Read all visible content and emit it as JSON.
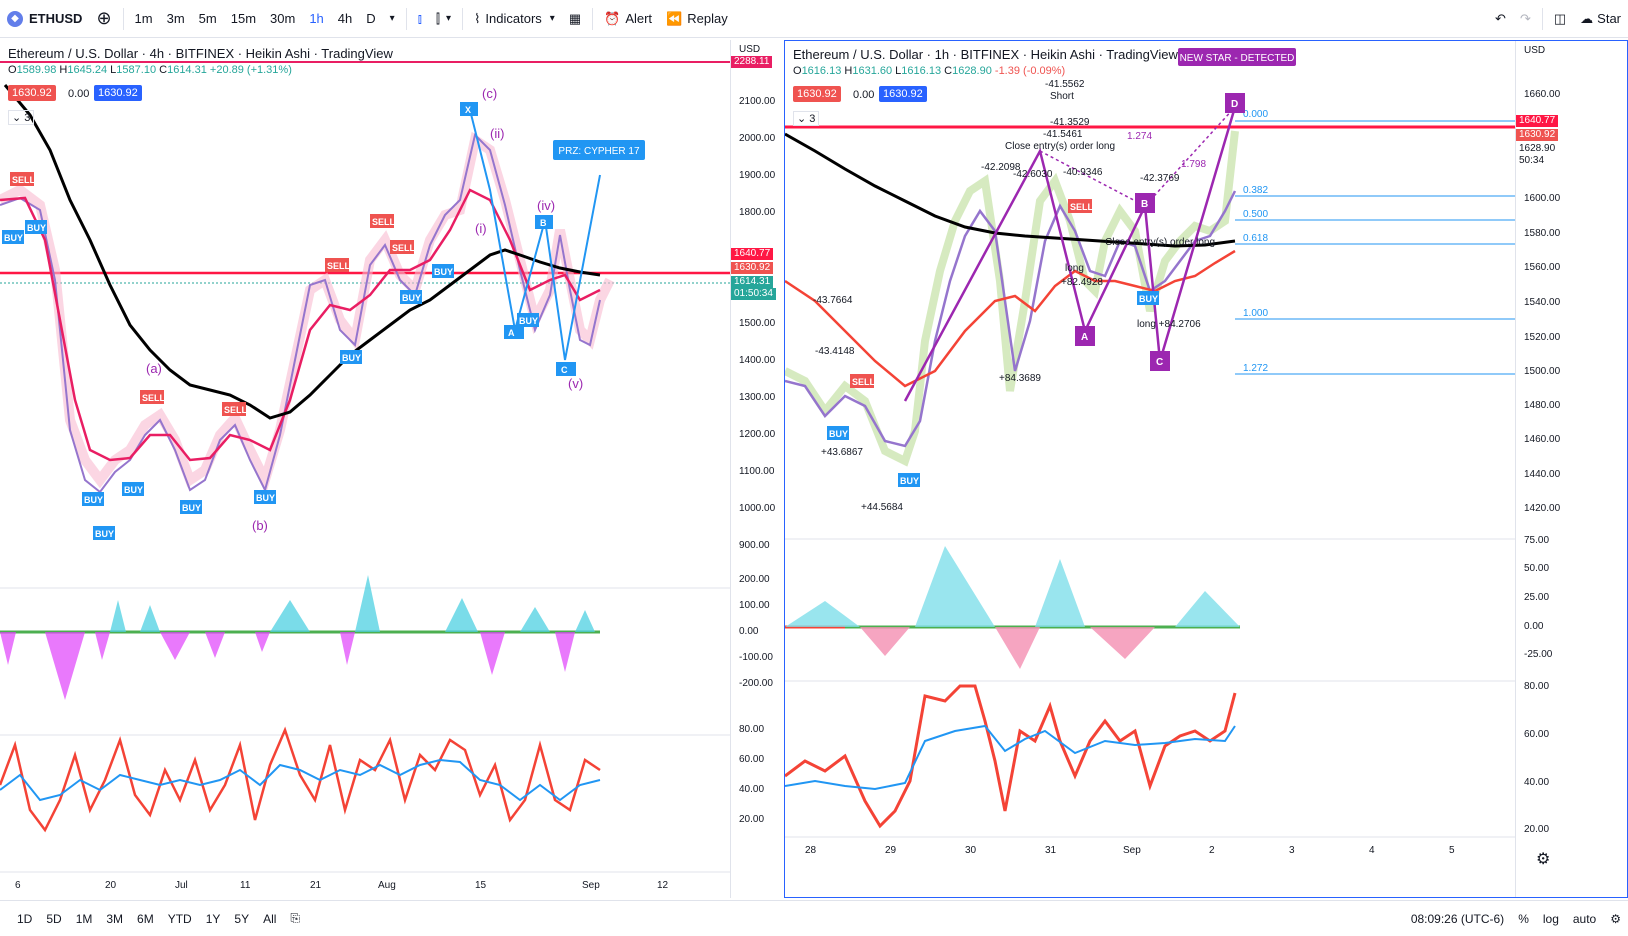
{
  "toolbar": {
    "symbol": "ETHUSD",
    "timeframes": [
      "1m",
      "3m",
      "5m",
      "15m",
      "30m",
      "1h",
      "4h",
      "D"
    ],
    "active_timeframe": "1h",
    "indicators_label": "Indicators",
    "alert_label": "Alert",
    "replay_label": "Replay",
    "start_label": "Star"
  },
  "left_chart": {
    "title": "Ethereum / U.S. Dollar · 4h · BITFINEX · Heikin Ashi · TradingView",
    "ohlc": {
      "o": "1589.98",
      "h": "1645.24",
      "l": "1587.10",
      "c": "1614.31",
      "change": "+20.89 (+1.31%)"
    },
    "sell_price": "1630.92",
    "spread": "0.00",
    "buy_price": "1630.92",
    "counter": "3",
    "currency": "USD",
    "price_axis": [
      "2100.00",
      "2000.00",
      "1900.00",
      "1800.00",
      "1700.00",
      "1600.00",
      "1500.00",
      "1400.00",
      "1300.00",
      "1200.00",
      "1100.00",
      "1000.00",
      "900.00"
    ],
    "osc_axis": [
      "200.00",
      "100.00",
      "0.00",
      "-100.00",
      "-200.00"
    ],
    "rsi_axis": [
      "80.00",
      "60.00",
      "40.00",
      "20.00"
    ],
    "axis_tags": {
      "top": "2288.11",
      "red1": "1640.77",
      "red2": "1630.92",
      "last": "1614.31",
      "timer": "01:50:34"
    },
    "date_axis": [
      "6",
      "20",
      "Jul",
      "11",
      "21",
      "Aug",
      "15",
      "Sep",
      "12"
    ],
    "prz_label": "PRZ: CYPHER 17",
    "wave_labels": [
      "(a)",
      "(b)",
      "(c)",
      "(i)",
      "(ii)",
      "(iv)",
      "(v)"
    ]
  },
  "right_chart": {
    "title": "Ethereum / U.S. Dollar · 1h · BITFINEX · Heikin Ashi · TradingView",
    "ohlc": {
      "o": "1616.13",
      "h": "1631.60",
      "l": "1616.13",
      "c": "1628.90",
      "change": "-1.39 (-0.09%)"
    },
    "sell_price": "1630.92",
    "spread": "0.00",
    "buy_price": "1630.92",
    "counter": "3",
    "currency": "USD",
    "detected_label": "NEW STAR - DETECTED",
    "price_axis": [
      "1660.00",
      "1640.00",
      "1620.00",
      "1600.00",
      "1580.00",
      "1560.00",
      "1540.00",
      "1520.00",
      "1500.00",
      "1480.00",
      "1460.00",
      "1440.00",
      "1420.00"
    ],
    "osc_axis": [
      "75.00",
      "50.00",
      "25.00",
      "0.00",
      "-25.00"
    ],
    "rsi_axis": [
      "80.00",
      "60.00",
      "40.00",
      "20.00"
    ],
    "axis_tags": {
      "red1": "1640.77",
      "red2": "1630.92",
      "last": "1628.90",
      "timer": "50:34"
    },
    "date_axis": [
      "28",
      "29",
      "30",
      "31",
      "Sep",
      "2",
      "3",
      "4",
      "5"
    ],
    "fib_levels": [
      "0.000",
      "0.382",
      "0.500",
      "0.618",
      "1.000",
      "1.272"
    ],
    "pattern_points": [
      "A",
      "B",
      "C",
      "D"
    ],
    "annotations": [
      "-41.5562",
      "Short",
      "-41.3529",
      "-41.5461",
      "-42.2098",
      "-42.6030",
      "-40.9346",
      "-42.3769",
      "-43.7664",
      "-43.4148",
      "1.274",
      "1.798",
      "long",
      "+82.4928",
      "+84.3689",
      "+44.5684",
      "+43.6867",
      "long +84.2706",
      "Close entry(s) order long",
      "Close entry(s) order long"
    ]
  },
  "bottombar": {
    "ranges": [
      "1D",
      "5D",
      "1M",
      "3M",
      "6M",
      "YTD",
      "1Y",
      "5Y",
      "All"
    ],
    "time": "08:09:26 (UTC-6)",
    "percent": "%",
    "log": "log",
    "auto": "auto"
  },
  "colors": {
    "red_line": "#ff1744",
    "buy_blue": "#2196f3",
    "sell_red": "#ef5350",
    "purple": "#9c27b0",
    "black_ma": "#000000",
    "accent": "#2962ff"
  }
}
